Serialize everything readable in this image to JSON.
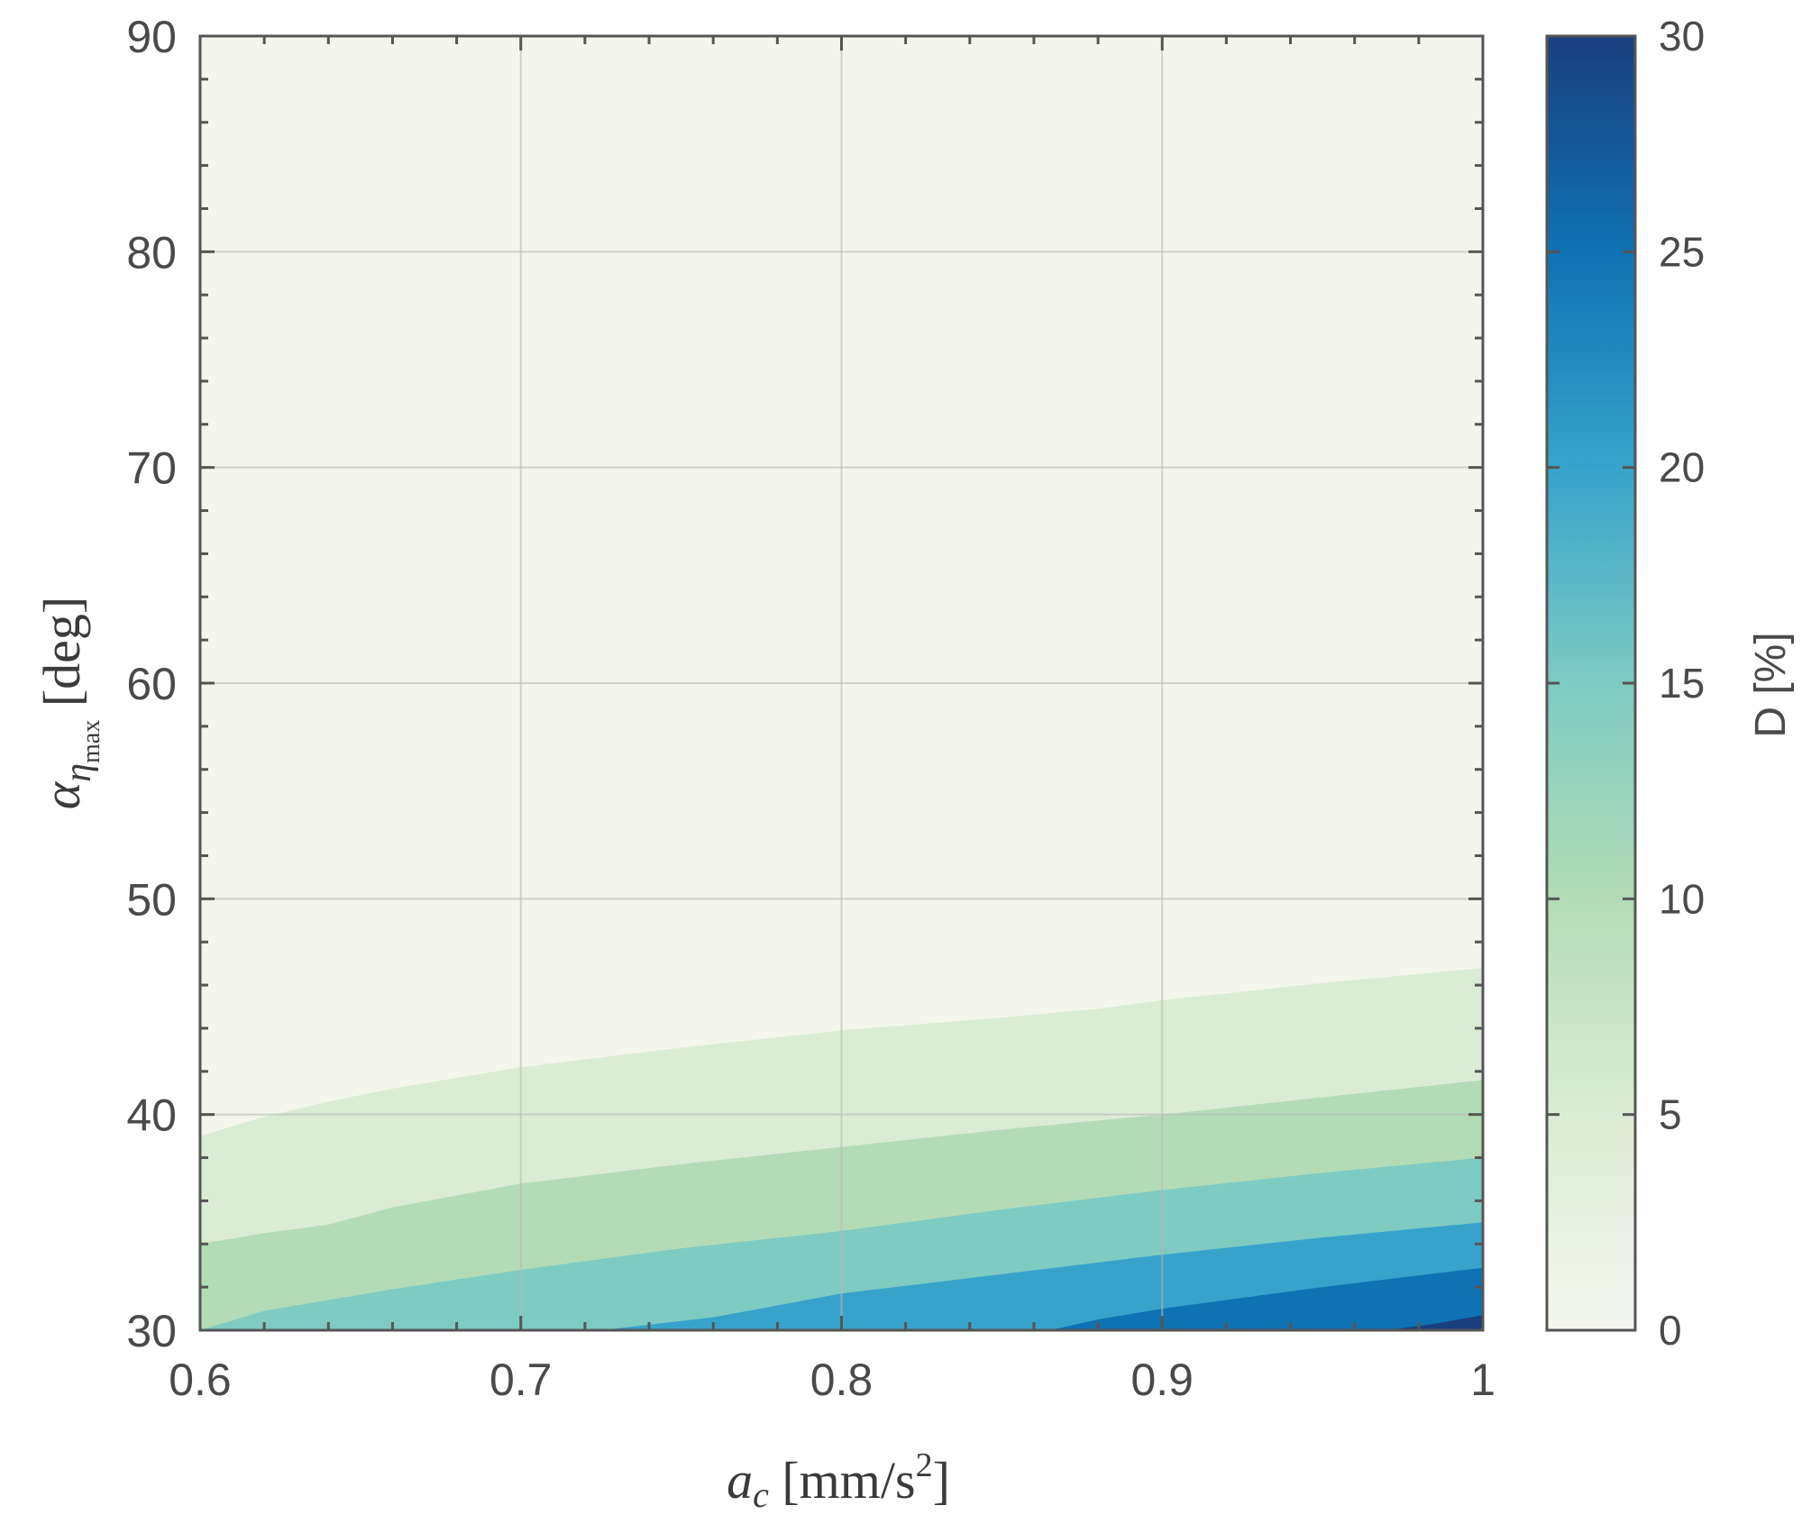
{
  "chart_data": {
    "type": "contour",
    "xlabel": {
      "symbol": "a",
      "sub": "c",
      "unit_open": " [mm/s",
      "unit_sup": "2",
      "unit_close": "]"
    },
    "ylabel": {
      "symbol": "α",
      "sub": "η",
      "subsub": "max",
      "unit": " [deg]"
    },
    "xlim": [
      0.6,
      1.0
    ],
    "ylim": [
      30,
      90
    ],
    "x_ticks": [
      0.6,
      0.7,
      0.8,
      0.9,
      1.0
    ],
    "x_tick_labels": [
      "0.6",
      "0.7",
      "0.8",
      "0.9",
      "1"
    ],
    "y_ticks": [
      30,
      40,
      50,
      60,
      70,
      80,
      90
    ],
    "y_tick_labels": [
      "30",
      "40",
      "50",
      "60",
      "70",
      "80",
      "90"
    ],
    "grid": true,
    "colorbar": {
      "label": "D [%]",
      "range": [
        0,
        30
      ],
      "ticks": [
        0,
        5,
        10,
        15,
        20,
        25,
        30
      ],
      "tick_labels": [
        "0",
        "5",
        "10",
        "15",
        "20",
        "25",
        "30"
      ],
      "colors": [
        "#f4f6ee",
        "#dbecd5",
        "#b3dcb6",
        "#7ecbc2",
        "#37a3cb",
        "#0f72b3",
        "#1a3f7f"
      ]
    },
    "contour_levels": [
      {
        "level": 0,
        "color": "#f4f6ee",
        "boundary": [
          [
            0.6,
            90
          ],
          [
            1.0,
            90
          ]
        ]
      },
      {
        "level": 5,
        "color": "#dbecd5",
        "boundary": [
          [
            0.6,
            39.0
          ],
          [
            0.62,
            39.9
          ],
          [
            0.64,
            40.6
          ],
          [
            0.66,
            41.2
          ],
          [
            0.7,
            42.2
          ],
          [
            0.75,
            43.1
          ],
          [
            0.8,
            43.9
          ],
          [
            0.85,
            44.5
          ],
          [
            0.88,
            44.9
          ],
          [
            0.9,
            45.3
          ],
          [
            0.95,
            46.1
          ],
          [
            1.0,
            46.8
          ]
        ]
      },
      {
        "level": 10,
        "color": "#b3dcb6",
        "boundary": [
          [
            0.6,
            34.0
          ],
          [
            0.62,
            34.5
          ],
          [
            0.64,
            34.9
          ],
          [
            0.66,
            35.7
          ],
          [
            0.7,
            36.8
          ],
          [
            0.75,
            37.7
          ],
          [
            0.8,
            38.5
          ],
          [
            0.85,
            39.3
          ],
          [
            0.9,
            40.0
          ],
          [
            0.95,
            40.8
          ],
          [
            1.0,
            41.6
          ]
        ]
      },
      {
        "level": 15,
        "color": "#7ecbc2",
        "boundary": [
          [
            0.6,
            30.0
          ],
          [
            0.62,
            30.9
          ],
          [
            0.66,
            31.9
          ],
          [
            0.7,
            32.8
          ],
          [
            0.75,
            33.8
          ],
          [
            0.8,
            34.6
          ],
          [
            0.85,
            35.6
          ],
          [
            0.9,
            36.5
          ],
          [
            0.95,
            37.3
          ],
          [
            1.0,
            38.0
          ]
        ]
      },
      {
        "level": 20,
        "color": "#37a3cb",
        "boundary": [
          [
            0.725,
            30.0
          ],
          [
            0.76,
            30.6
          ],
          [
            0.8,
            31.7
          ],
          [
            0.85,
            32.6
          ],
          [
            0.9,
            33.5
          ],
          [
            0.95,
            34.3
          ],
          [
            1.0,
            35.0
          ]
        ]
      },
      {
        "level": 25,
        "color": "#0f72b3",
        "boundary": [
          [
            0.865,
            30.0
          ],
          [
            0.88,
            30.5
          ],
          [
            0.9,
            31.0
          ],
          [
            0.95,
            32.0
          ],
          [
            1.0,
            32.9
          ]
        ]
      },
      {
        "level": 30,
        "color": "#1a3f7f",
        "boundary": [
          [
            0.97,
            30.0
          ],
          [
            0.985,
            30.3
          ],
          [
            1.0,
            30.7
          ]
        ]
      }
    ]
  }
}
